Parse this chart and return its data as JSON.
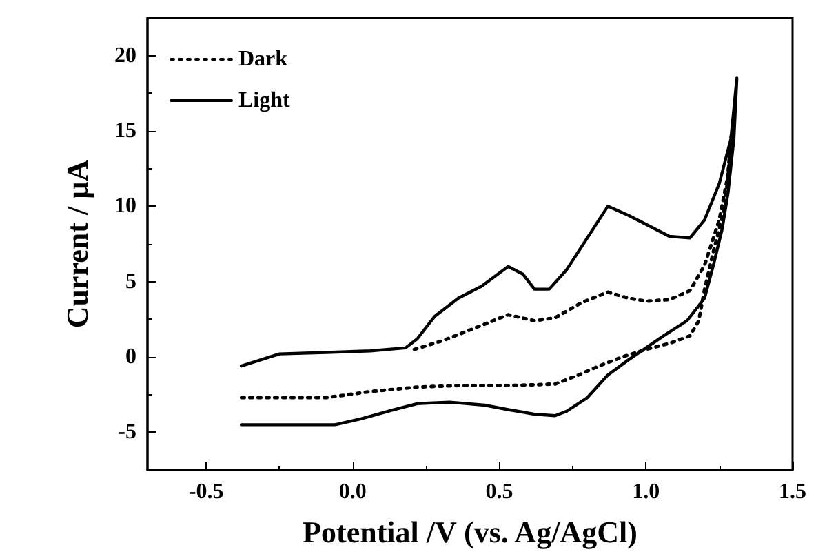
{
  "chart_data": {
    "type": "line",
    "xlabel": "Potential /V (vs. Ag/AgCl)",
    "ylabel": "Current / µA",
    "xlim": [
      -0.7,
      1.5
    ],
    "xticks": [
      {
        "value": -0.5,
        "label": "-0.5"
      },
      {
        "value": 0,
        "label": "0.0"
      },
      {
        "value": 0.5,
        "label": "0.5"
      },
      {
        "value": 1,
        "label": "1.0"
      },
      {
        "value": 1.5,
        "label": "1.5"
      }
    ],
    "ylim": [
      -7.5,
      22.5
    ],
    "yticks": [
      -5,
      0,
      5,
      10,
      15,
      20
    ],
    "legend": "top left",
    "marker": "none",
    "series": [
      {
        "name": "Dark",
        "color": "#000000",
        "line_style": "dotted",
        "x": [
          0.21,
          0.31,
          0.44,
          0.53,
          0.62,
          0.69,
          0.78,
          0.87,
          0.94,
          1.0,
          1.08,
          1.15,
          1.2,
          1.25,
          1.28,
          1.3,
          1.29,
          1.27,
          1.23,
          1.2,
          1.18,
          1.15,
          1.08,
          1.0,
          0.92,
          0.84,
          0.77,
          0.69,
          0.53,
          0.36,
          0.22,
          0.06,
          -0.09,
          -0.25,
          -0.38
        ],
        "values": [
          0.5,
          1.1,
          2.1,
          2.8,
          2.4,
          2.6,
          3.6,
          4.3,
          3.9,
          3.7,
          3.8,
          4.4,
          6.1,
          9.1,
          12.1,
          16.1,
          14.5,
          10.0,
          7.0,
          4.5,
          2.4,
          1.4,
          0.9,
          0.5,
          0,
          -0.6,
          -1.2,
          -1.8,
          -1.9,
          -1.9,
          -2.0,
          -2.3,
          -2.7,
          -2.7,
          -2.7
        ]
      },
      {
        "name": "Light",
        "color": "#000000",
        "line_style": "solid",
        "x": [
          -0.38,
          -0.25,
          -0.09,
          0.06,
          0.18,
          0.22,
          0.28,
          0.36,
          0.44,
          0.53,
          0.58,
          0.62,
          0.67,
          0.73,
          0.8,
          0.87,
          0.94,
          1.0,
          1.08,
          1.15,
          1.2,
          1.25,
          1.29,
          1.31,
          1.3,
          1.28,
          1.26,
          1.23,
          1.2,
          1.14,
          1.06,
          1.0,
          0.94,
          0.87,
          0.8,
          0.73,
          0.69,
          0.62,
          0.53,
          0.45,
          0.33,
          0.22,
          0.14,
          0.03,
          -0.06,
          -0.2,
          -0.38
        ],
        "values": [
          -0.6,
          0.2,
          0.3,
          0.4,
          0.6,
          1.2,
          2.7,
          3.9,
          4.7,
          6.0,
          5.5,
          4.5,
          4.5,
          5.8,
          7.9,
          10.0,
          9.4,
          8.8,
          8.0,
          7.9,
          9.1,
          11.5,
          14.5,
          18.5,
          14.5,
          10.9,
          8.5,
          6.1,
          3.9,
          2.4,
          1.4,
          0.6,
          -0.2,
          -1.2,
          -2.7,
          -3.6,
          -3.9,
          -3.8,
          -3.5,
          -3.2,
          -3.0,
          -3.1,
          -3.5,
          -4.1,
          -4.5,
          -4.5,
          -4.5
        ]
      }
    ]
  }
}
